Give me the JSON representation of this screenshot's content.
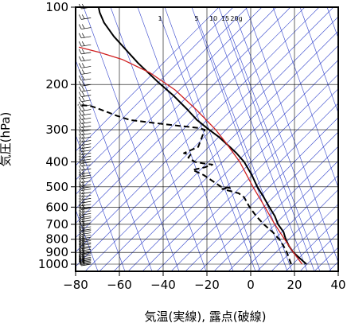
{
  "chart_data": {
    "type": "line",
    "chart_kind": "skew-T log-p",
    "xlabel": "気温(実線), 露点(破線)",
    "ylabel": "気圧(hPa)",
    "x_ticks": [
      -80,
      -60,
      -40,
      -20,
      0,
      20,
      40
    ],
    "y_ticks": [
      100,
      200,
      300,
      400,
      500,
      600,
      700,
      800,
      900,
      1000
    ],
    "y_scale": "log",
    "y_inverted": true,
    "xlim": [
      -80,
      40
    ],
    "ylim": [
      1050,
      100
    ],
    "grid": true,
    "mixing_ratio_labels": [
      "1",
      "5",
      "10",
      "15",
      "20g"
    ],
    "colors": {
      "temperature": "#000000",
      "dewpoint": "#000000",
      "reference": "#d02020",
      "isotherm": "#3344cc",
      "dry_adiabat": "#3344cc",
      "grid": "#000000"
    },
    "series": [
      {
        "key": "temperature",
        "style": "solid",
        "x": [
          25.5,
          22.5,
          19.5,
          17.5,
          16.0,
          15.0,
          12.5,
          11.0,
          8.5,
          6.0,
          3.0,
          0.5,
          -3.0,
          -6.5,
          -9.5,
          -14.5,
          -19.0,
          -24.5,
          -29.0,
          -35.5,
          -42.5,
          -51.5,
          -57.5,
          -62.5,
          -67.0,
          -69.0,
          -69.5
        ],
        "y": [
          1000,
          950,
          900,
          850,
          800,
          750,
          700,
          650,
          600,
          550,
          500,
          450,
          400,
          370,
          350,
          320,
          300,
          275,
          250,
          220,
          195,
          165,
          145,
          130,
          115,
          105,
          100
        ]
      },
      {
        "key": "dewpoint",
        "style": "dashed",
        "x": [
          18.5,
          17.5,
          16.5,
          15.0,
          13.0,
          10.0,
          6.0,
          2.5,
          -0.5,
          -3.0,
          -5.5,
          -13.0,
          -9.5,
          -13.5,
          -21.5,
          -26.5,
          -21.0,
          -17.5,
          -22.0,
          -25.5,
          -28.5,
          -27.5,
          -30.5,
          -24.0,
          -21.0,
          -24.0,
          -40.0,
          -55.0,
          -61.0,
          -66.0,
          -71.5,
          -73.5,
          -79.0
        ],
        "y": [
          1000,
          950,
          900,
          850,
          800,
          750,
          700,
          650,
          600,
          550,
          530,
          510,
          505,
          500,
          450,
          430,
          420,
          410,
          405,
          400,
          385,
          375,
          370,
          350,
          300,
          295,
          285,
          275,
          265,
          255,
          245,
          242,
          240
        ]
      },
      {
        "key": "reference",
        "style": "solid",
        "x": [
          23.5,
          19.5,
          15.5,
          11.0,
          6.5,
          1.0,
          -5.0,
          -11.0,
          -16.0,
          -25.0,
          -34.5,
          -46.0,
          -58.5,
          -69.0,
          -78.5
        ],
        "y": [
          1000,
          900,
          800,
          700,
          600,
          500,
          400,
          340,
          300,
          250,
          210,
          180,
          160,
          150,
          143
        ]
      }
    ],
    "wind_barbs": {
      "x": -73,
      "pressures": [
        1000,
        990,
        980,
        970,
        960,
        950,
        940,
        925,
        910,
        900,
        890,
        875,
        860,
        850,
        835,
        825,
        810,
        800,
        785,
        770,
        755,
        740,
        730,
        715,
        700,
        690,
        675,
        660,
        650,
        635,
        620,
        605,
        600,
        585,
        570,
        555,
        540,
        525,
        510,
        500,
        490,
        475,
        460,
        450,
        440,
        425,
        410,
        400,
        390,
        380,
        370,
        360,
        350,
        340,
        330,
        320,
        310,
        300,
        290,
        280,
        270,
        260,
        250,
        240,
        230,
        220,
        210,
        200,
        190,
        180,
        170,
        160,
        150,
        140,
        130,
        120,
        110,
        100
      ]
    }
  }
}
